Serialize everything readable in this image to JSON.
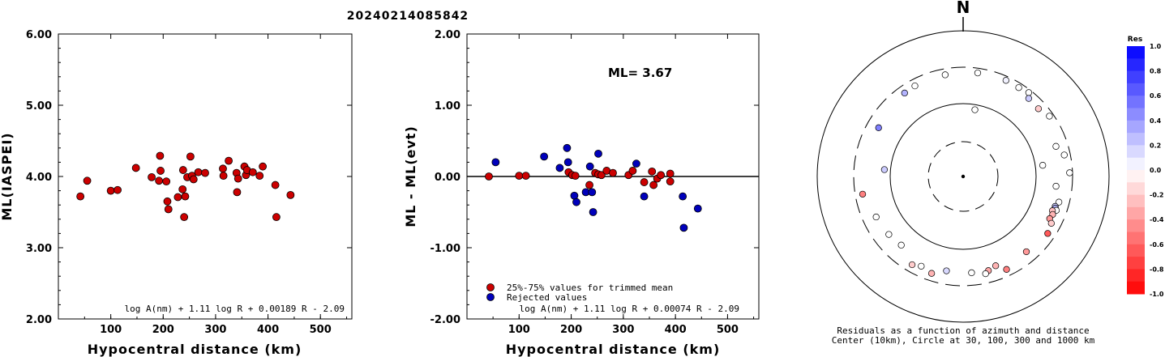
{
  "title": "20240214085842",
  "chart_data": [
    {
      "type": "scatter",
      "xlabel": "Hypocentral distance (km)",
      "ylabel": "ML(IASPEI)",
      "xlim": [
        0,
        560
      ],
      "ylim": [
        2.0,
        6.0
      ],
      "xticks": [
        "100",
        "200",
        "300",
        "400",
        "500"
      ],
      "yticks": [
        "2.00",
        "3.00",
        "4.00",
        "5.00",
        "6.00"
      ],
      "formula": "log A(nm) + 1.11 log R + 0.00189 R - 2.09",
      "grid": false,
      "series": [
        {
          "color": "#cc0000",
          "points": [
            [
              42,
              3.72
            ],
            [
              55,
              3.94
            ],
            [
              100,
              3.8
            ],
            [
              113,
              3.81
            ],
            [
              148,
              4.12
            ],
            [
              178,
              3.99
            ],
            [
              192,
              3.94
            ],
            [
              194,
              4.29
            ],
            [
              195,
              4.08
            ],
            [
              206,
              3.93
            ],
            [
              208,
              3.65
            ],
            [
              210,
              3.54
            ],
            [
              228,
              3.71
            ],
            [
              237,
              3.82
            ],
            [
              238,
              4.09
            ],
            [
              240,
              3.43
            ],
            [
              242,
              3.72
            ],
            [
              246,
              3.99
            ],
            [
              252,
              4.28
            ],
            [
              255,
              4.01
            ],
            [
              258,
              3.96
            ],
            [
              267,
              4.06
            ],
            [
              280,
              4.05
            ],
            [
              314,
              4.11
            ],
            [
              315,
              4.01
            ],
            [
              325,
              4.22
            ],
            [
              340,
              4.05
            ],
            [
              341,
              3.78
            ],
            [
              343,
              3.97
            ],
            [
              355,
              4.14
            ],
            [
              358,
              4.02
            ],
            [
              360,
              4.09
            ],
            [
              371,
              4.06
            ],
            [
              384,
              4.01
            ],
            [
              390,
              4.14
            ],
            [
              414,
              3.88
            ],
            [
              416,
              3.43
            ],
            [
              443,
              3.74
            ]
          ]
        }
      ]
    },
    {
      "type": "scatter",
      "xlabel": "Hypocentral distance (km)",
      "ylabel": "ML - ML(evt)",
      "xlim": [
        0,
        560
      ],
      "ylim": [
        -2.0,
        2.0
      ],
      "xticks": [
        "100",
        "200",
        "300",
        "400",
        "500"
      ],
      "yticks": [
        "-2.00",
        "-1.00",
        "0.00",
        "1.00",
        "2.00"
      ],
      "annotation": "ML= 3.67",
      "formula": "log A(nm) + 1.11 log R + 0.00074 R - 2.09",
      "grid": false,
      "zero_line": 0,
      "legend_position": "bottom-left",
      "series": [
        {
          "name": "25%-75% values for trimmed mean",
          "color": "#cc0000",
          "points": [
            [
              42,
              0.0
            ],
            [
              100,
              0.01
            ],
            [
              113,
              0.01
            ],
            [
              195,
              0.06
            ],
            [
              202,
              0.02
            ],
            [
              208,
              0.01
            ],
            [
              235,
              -0.12
            ],
            [
              246,
              0.05
            ],
            [
              252,
              0.03
            ],
            [
              258,
              0.02
            ],
            [
              268,
              0.08
            ],
            [
              280,
              0.05
            ],
            [
              310,
              0.02
            ],
            [
              318,
              0.08
            ],
            [
              340,
              -0.08
            ],
            [
              355,
              0.07
            ],
            [
              358,
              -0.12
            ],
            [
              365,
              -0.03
            ],
            [
              372,
              0.02
            ],
            [
              390,
              0.04
            ],
            [
              390,
              -0.07
            ]
          ]
        },
        {
          "name": "Rejected values",
          "color": "#0000bb",
          "points": [
            [
              55,
              0.2
            ],
            [
              148,
              0.28
            ],
            [
              178,
              0.12
            ],
            [
              192,
              0.4
            ],
            [
              194,
              0.2
            ],
            [
              206,
              -0.27
            ],
            [
              210,
              -0.36
            ],
            [
              228,
              -0.22
            ],
            [
              236,
              0.14
            ],
            [
              240,
              -0.22
            ],
            [
              242,
              -0.5
            ],
            [
              252,
              0.32
            ],
            [
              325,
              0.18
            ],
            [
              340,
              -0.28
            ],
            [
              414,
              -0.28
            ],
            [
              416,
              -0.72
            ],
            [
              443,
              -0.45
            ]
          ]
        }
      ]
    },
    {
      "type": "polar-scatter",
      "north_label": "N",
      "caption_line1": "Residuals as a function of azimuth and distance",
      "caption_line2": "Center (10km), Circle at 30, 100, 300 and 1000 km",
      "rings_km": [
        30,
        100,
        300,
        1000
      ],
      "colorbar_title": "Res",
      "colorbar_ticks": [
        "1.0",
        "0.8",
        "0.6",
        "0.4",
        "0.2",
        "0.0",
        "-0.2",
        "-0.4",
        "-0.6",
        "-0.8",
        "-1.0"
      ],
      "points": [
        {
          "az": 8,
          "dist": 260,
          "res": 0.0
        },
        {
          "az": 24,
          "dist": 265,
          "res": 0.05
        },
        {
          "az": 32,
          "dist": 262,
          "res": 0.0
        },
        {
          "az": 38,
          "dist": 275,
          "res": 0.0
        },
        {
          "az": 40,
          "dist": 240,
          "res": 0.2
        },
        {
          "az": 48,
          "dist": 235,
          "res": -0.2
        },
        {
          "az": 55,
          "dist": 265,
          "res": 0.0
        },
        {
          "az": 72,
          "dist": 210,
          "res": 0.0
        },
        {
          "az": 78,
          "dist": 250,
          "res": 0.0
        },
        {
          "az": 82,
          "dist": 125,
          "res": 0.0
        },
        {
          "az": 88,
          "dist": 275,
          "res": 0.0
        },
        {
          "az": 96,
          "dist": 185,
          "res": 0.0
        },
        {
          "az": 105,
          "dist": 220,
          "res": 0.0
        },
        {
          "az": 108,
          "dist": 205,
          "res": 0.2
        },
        {
          "az": 109,
          "dist": 210,
          "res": 0.3
        },
        {
          "az": 110,
          "dist": 220,
          "res": 0.0
        },
        {
          "az": 111,
          "dist": 198,
          "res": -0.25
        },
        {
          "az": 113,
          "dist": 208,
          "res": -0.3
        },
        {
          "az": 116,
          "dist": 202,
          "res": -0.4
        },
        {
          "az": 118,
          "dist": 225,
          "res": -0.2
        },
        {
          "az": 124,
          "dist": 240,
          "res": -0.65
        },
        {
          "az": 140,
          "dist": 215,
          "res": -0.4
        },
        {
          "az": 155,
          "dist": 245,
          "res": -0.5
        },
        {
          "az": 160,
          "dist": 195,
          "res": -0.3
        },
        {
          "az": 165,
          "dist": 210,
          "res": -0.35
        },
        {
          "az": 167,
          "dist": 225,
          "res": 0.0
        },
        {
          "az": 175,
          "dist": 205,
          "res": 0.0
        },
        {
          "az": 190,
          "dist": 200,
          "res": 0.15
        },
        {
          "az": 198,
          "dist": 240,
          "res": -0.3
        },
        {
          "az": 205,
          "dist": 220,
          "res": 0.0
        },
        {
          "az": 210,
          "dist": 240,
          "res": -0.2
        },
        {
          "az": 222,
          "dist": 180,
          "res": 0.0
        },
        {
          "az": 232,
          "dist": 190,
          "res": 0.0
        },
        {
          "az": 245,
          "dist": 200,
          "res": 0.0
        },
        {
          "az": 260,
          "dist": 240,
          "res": -0.5
        },
        {
          "az": 275,
          "dist": 120,
          "res": 0.2
        },
        {
          "az": 300,
          "dist": 210,
          "res": 0.5
        },
        {
          "az": 325,
          "dist": 240,
          "res": 0.3
        },
        {
          "az": 332,
          "dist": 245,
          "res": 0.0
        },
        {
          "az": 350,
          "dist": 250,
          "res": 0.0
        },
        {
          "az": 10,
          "dist": 85,
          "res": 0.0
        }
      ]
    }
  ]
}
